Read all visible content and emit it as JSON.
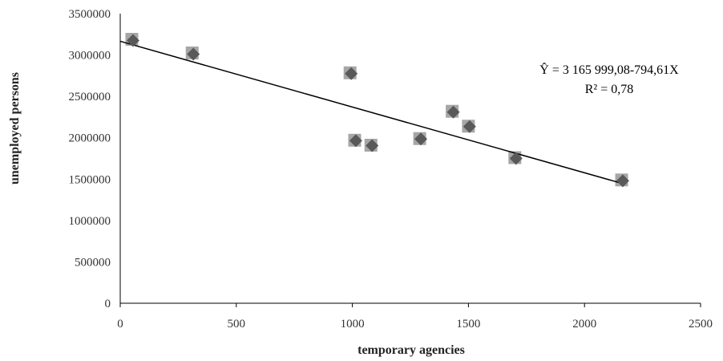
{
  "chart_data": {
    "type": "scatter",
    "title": "",
    "xlabel": "temporary agencies",
    "ylabel": "unemployed persons",
    "xlim": [
      0,
      2500
    ],
    "ylim": [
      0,
      3500000
    ],
    "x_ticks": [
      0,
      500,
      1000,
      1500,
      2000,
      2500
    ],
    "y_ticks": [
      0,
      500000,
      1000000,
      1500000,
      2000000,
      2500000,
      3000000,
      3500000
    ],
    "x_tick_labels": [
      "0",
      "500",
      "1000",
      "1500",
      "2000",
      "2500"
    ],
    "y_tick_labels": [
      "0",
      "500000",
      "1000000",
      "1500000",
      "2000000",
      "2500000",
      "3000000",
      "3500000"
    ],
    "grid": false,
    "legend": "none",
    "colors": {
      "actual": "#a6a6a6",
      "fitted": "#595959",
      "trendline": "#000000",
      "axis": "#000000"
    },
    "series": [
      {
        "marker": "square",
        "points": [
          [
            50,
            3190000
          ],
          [
            310,
            3025000
          ],
          [
            990,
            2785000
          ],
          [
            1010,
            1970000
          ],
          [
            1080,
            1910000
          ],
          [
            1290,
            1990000
          ],
          [
            1430,
            2320000
          ],
          [
            1500,
            2140000
          ],
          [
            1700,
            1760000
          ],
          [
            2160,
            1490000
          ]
        ]
      },
      {
        "marker": "diamond",
        "points": [
          [
            55,
            3175000
          ],
          [
            315,
            3010000
          ],
          [
            995,
            2775000
          ],
          [
            1015,
            1965000
          ],
          [
            1085,
            1905000
          ],
          [
            1295,
            1985000
          ],
          [
            1435,
            2310000
          ],
          [
            1505,
            2135000
          ],
          [
            1705,
            1750000
          ],
          [
            2165,
            1480000
          ]
        ]
      }
    ],
    "trendline": {
      "intercept": 3165999.08,
      "slope": -794.61,
      "x_range": [
        0,
        2160
      ]
    },
    "annotations": [
      "Ŷ = 3 165 999,08-794,61X",
      "R² = 0,78"
    ]
  }
}
